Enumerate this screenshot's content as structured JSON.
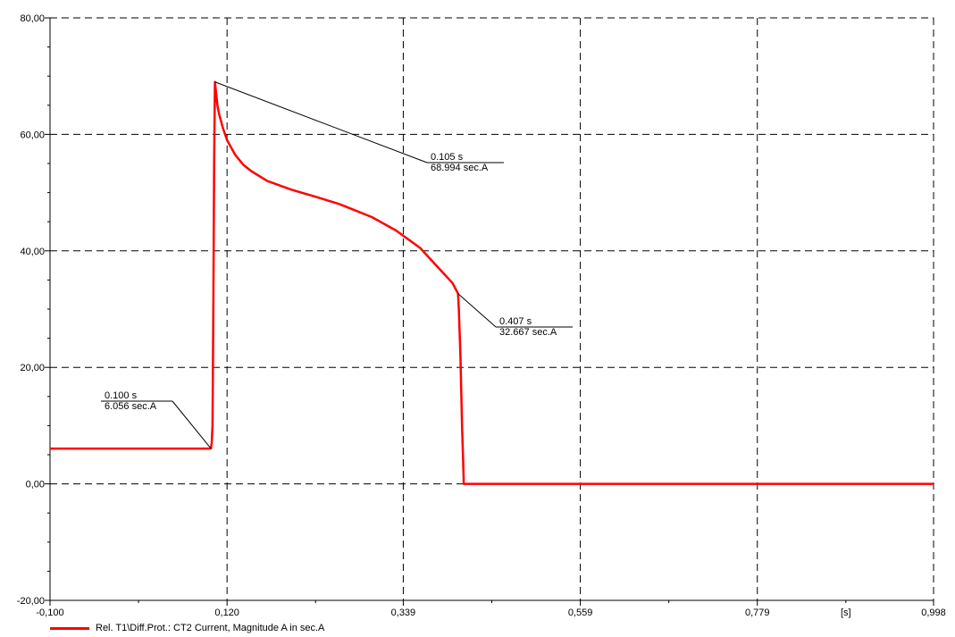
{
  "chart_data": {
    "type": "line",
    "xlabel": "[s]",
    "ylabel": "",
    "xlim": [
      -0.1,
      0.998
    ],
    "ylim": [
      -20,
      80
    ],
    "x_ticks": [
      "-0,100",
      "0,120",
      "0,339",
      "0,559",
      "0,779",
      "0,998"
    ],
    "x_tick_values": [
      -0.1,
      0.12,
      0.339,
      0.559,
      0.779,
      0.998
    ],
    "y_ticks": [
      "-20,00",
      "0,00",
      "20,00",
      "40,00",
      "60,00",
      "80,00"
    ],
    "y_tick_values": [
      -20,
      0,
      20,
      40,
      60,
      80
    ],
    "grid": true,
    "legend_placement": "bottom-left",
    "series": [
      {
        "name": "Rel. T1\\Diff.Prot.: CT2 Current, Magnitude A in sec.A",
        "color": "#ff0000",
        "x": [
          -0.1,
          0.099,
          0.1,
          0.101,
          0.102,
          0.103,
          0.104,
          0.105,
          0.106,
          0.108,
          0.11,
          0.115,
          0.12,
          0.13,
          0.14,
          0.15,
          0.17,
          0.2,
          0.23,
          0.26,
          0.3,
          0.33,
          0.36,
          0.38,
          0.4,
          0.407,
          0.408,
          0.41,
          0.412,
          0.414,
          0.414,
          0.998
        ],
        "y": [
          6.056,
          6.056,
          6.056,
          7,
          10,
          30,
          55,
          68.994,
          67.5,
          65,
          63.5,
          61,
          59,
          56.5,
          54.8,
          53.7,
          52,
          50.5,
          49.3,
          48,
          45.8,
          43.5,
          40.5,
          37.5,
          34.5,
          32.667,
          30,
          22,
          10,
          1,
          0,
          0
        ]
      }
    ],
    "annotations": [
      {
        "time": "0.100 s",
        "value": "6.056 sec.A",
        "point_x": 0.1,
        "point_y": 6.056
      },
      {
        "time": "0.105 s",
        "value": "68.994 sec.A",
        "point_x": 0.105,
        "point_y": 68.994
      },
      {
        "time": "0.407 s",
        "value": "32.667 sec.A",
        "point_x": 0.407,
        "point_y": 32.667
      }
    ]
  }
}
